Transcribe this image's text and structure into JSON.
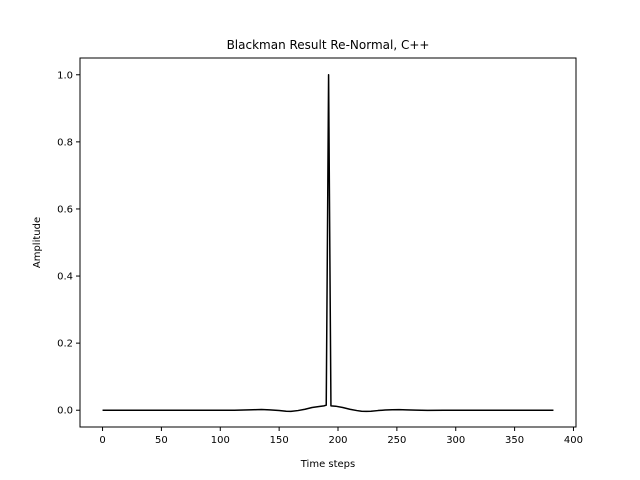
{
  "chart_data": {
    "type": "line",
    "title": "Blackman Result Re-Normal, C++",
    "xlabel": "Time steps",
    "ylabel": "Amplitude",
    "xlim": [
      -19.15,
      402.15
    ],
    "ylim": [
      -0.05,
      1.05
    ],
    "xticks": [
      0,
      50,
      100,
      150,
      200,
      250,
      300,
      350,
      400
    ],
    "yticks": [
      0.0,
      0.2,
      0.4,
      0.6,
      0.8,
      1.0
    ],
    "xtick_labels": [
      "0",
      "50",
      "100",
      "150",
      "200",
      "250",
      "300",
      "350",
      "400"
    ],
    "ytick_labels": [
      "0.0",
      "0.2",
      "0.4",
      "0.6",
      "0.8",
      "1.0"
    ],
    "grid": false,
    "series": [
      {
        "color": "#000000",
        "x": [
          0,
          25,
          50,
          75,
          100,
          112,
          120,
          128,
          135,
          142,
          150,
          156,
          160,
          166,
          172,
          178,
          184,
          188,
          190,
          191,
          192,
          193,
          194,
          198,
          204,
          210,
          216,
          220,
          224,
          228,
          234,
          240,
          246,
          252,
          258,
          266,
          276,
          290,
          310,
          340,
          383
        ],
        "y": [
          0.0,
          0.0,
          0.0,
          0.0,
          0.0,
          0.0,
          0.0005,
          0.0015,
          0.002,
          0.0012,
          -0.001,
          -0.003,
          -0.0035,
          -0.001,
          0.003,
          0.008,
          0.011,
          0.013,
          0.015,
          0.5,
          1.0,
          0.5,
          0.013,
          0.012,
          0.008,
          0.003,
          -0.001,
          -0.003,
          -0.0035,
          -0.003,
          -0.001,
          0.0005,
          0.0015,
          0.0018,
          0.0012,
          0.0002,
          -0.0003,
          0.0,
          0.0,
          0.0,
          0.0
        ]
      }
    ]
  }
}
